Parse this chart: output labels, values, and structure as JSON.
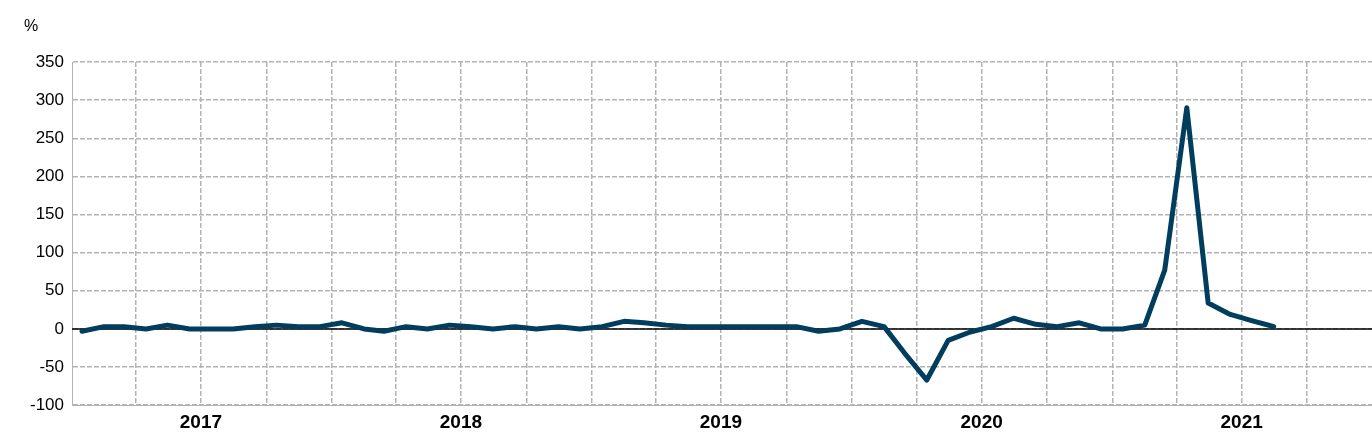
{
  "chart_data": {
    "type": "line",
    "ylabel": "%",
    "x": [
      "2017-01-15",
      "2017-02-15",
      "2017-03-15",
      "2017-04-15",
      "2017-05-15",
      "2017-06-15",
      "2017-07-15",
      "2017-08-15",
      "2017-09-15",
      "2017-10-15",
      "2017-11-15",
      "2017-12-15",
      "2018-01-15",
      "2018-02-15",
      "2018-03-15",
      "2018-04-15",
      "2018-05-15",
      "2018-06-15",
      "2018-07-15",
      "2018-08-15",
      "2018-09-15",
      "2018-10-15",
      "2018-11-15",
      "2018-12-15",
      "2019-01-15",
      "2019-02-15",
      "2019-03-15",
      "2019-04-15",
      "2019-05-15",
      "2019-06-15",
      "2019-07-15",
      "2019-08-15",
      "2019-09-15",
      "2019-10-15",
      "2019-11-15",
      "2019-12-15",
      "2020-01-15",
      "2020-02-15",
      "2020-03-15",
      "2020-04-15",
      "2020-05-15",
      "2020-06-15",
      "2020-07-15",
      "2020-08-15",
      "2020-09-15",
      "2020-10-15",
      "2020-11-15",
      "2020-12-15",
      "2021-01-15",
      "2021-02-15",
      "2021-03-15",
      "2021-04-15",
      "2021-05-15",
      "2021-06-15",
      "2021-07-15",
      "2021-08-15"
    ],
    "series": [
      {
        "color": "#013d5c",
        "values": [
          -3,
          3,
          3,
          0,
          5,
          0,
          0,
          0,
          3,
          5,
          3,
          3,
          8,
          0,
          -3,
          3,
          0,
          5,
          3,
          0,
          3,
          0,
          3,
          0,
          3,
          10,
          8,
          5,
          3,
          3,
          3,
          3,
          3,
          3,
          -3,
          0,
          10,
          3,
          -32,
          -67,
          -15,
          -4,
          3,
          14,
          6,
          3,
          8,
          0,
          0,
          5,
          77,
          290,
          34,
          19,
          11,
          3
        ]
      }
    ],
    "xlim": [
      "2017-01-01",
      "2021-12-31"
    ],
    "xticks": [
      {
        "value": "2017-04-01",
        "label": null
      },
      {
        "value": "2017-07-01",
        "label": "2017"
      },
      {
        "value": "2017-10-01",
        "label": null
      },
      {
        "value": "2018-01-01",
        "label": null
      },
      {
        "value": "2018-04-01",
        "label": null
      },
      {
        "value": "2018-07-01",
        "label": "2018"
      },
      {
        "value": "2018-10-01",
        "label": null
      },
      {
        "value": "2019-01-01",
        "label": null
      },
      {
        "value": "2019-04-01",
        "label": null
      },
      {
        "value": "2019-07-01",
        "label": "2019"
      },
      {
        "value": "2019-10-01",
        "label": null
      },
      {
        "value": "2020-01-01",
        "label": null
      },
      {
        "value": "2020-04-01",
        "label": null
      },
      {
        "value": "2020-07-01",
        "label": "2020"
      },
      {
        "value": "2020-10-01",
        "label": null
      },
      {
        "value": "2021-01-01",
        "label": null
      },
      {
        "value": "2021-04-01",
        "label": null
      },
      {
        "value": "2021-07-01",
        "label": "2021"
      },
      {
        "value": "2021-10-01",
        "label": null
      }
    ],
    "ylim": [
      -100,
      350
    ],
    "yticks": [
      -100,
      -50,
      0,
      50,
      100,
      150,
      200,
      250,
      300,
      350
    ],
    "grid": true,
    "legend": false,
    "marker": "none",
    "line_style": "solid",
    "ref_lines": [
      {
        "axis": "y",
        "value": 0,
        "color": "#000000"
      }
    ]
  }
}
